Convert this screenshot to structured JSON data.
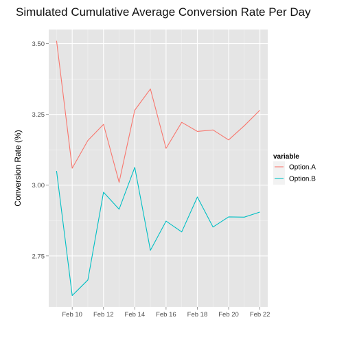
{
  "chart_data": {
    "type": "line",
    "title": "Simulated Cumulative Average Conversion Rate Per Day",
    "xlabel": "",
    "ylabel": "Conversion Rate (%)",
    "x": [
      "2013-02-09",
      "2013-02-10",
      "2013-02-11",
      "2013-02-12",
      "2013-02-13",
      "2013-02-14",
      "2013-02-15",
      "2013-02-16",
      "2013-02-17",
      "2013-02-18",
      "2013-02-19",
      "2013-02-20",
      "2013-02-21",
      "2013-02-22"
    ],
    "xlim": [
      "2013-02-08 12:00",
      "2013-02-22 12:00"
    ],
    "xticks": [
      {
        "date": "2013-02-10",
        "label": "Feb 10"
      },
      {
        "date": "2013-02-12",
        "label": "Feb 12"
      },
      {
        "date": "2013-02-14",
        "label": "Feb 14"
      },
      {
        "date": "2013-02-16",
        "label": "Feb 16"
      },
      {
        "date": "2013-02-18",
        "label": "Feb 18"
      },
      {
        "date": "2013-02-20",
        "label": "Feb 20"
      },
      {
        "date": "2013-02-22",
        "label": "Feb 22"
      }
    ],
    "yticks": [
      {
        "value": 2.75,
        "label": "2.75"
      },
      {
        "value": 3.0,
        "label": "3.00"
      },
      {
        "value": 3.25,
        "label": "3.25"
      },
      {
        "value": 3.5,
        "label": "3.50"
      }
    ],
    "ylim": [
      2.57,
      3.55
    ],
    "grid": true,
    "legend": {
      "title": "variable",
      "position": "right"
    },
    "series": [
      {
        "name": "Option.A",
        "color": "#F8766D",
        "values": [
          3.51,
          3.06,
          3.158,
          3.215,
          3.01,
          3.265,
          3.34,
          3.13,
          3.222,
          3.19,
          3.195,
          3.16,
          3.21,
          3.265
        ]
      },
      {
        "name": "Option.B",
        "color": "#00BFC4",
        "values": [
          3.05,
          2.61,
          2.665,
          2.975,
          2.915,
          3.063,
          2.77,
          2.873,
          2.835,
          2.958,
          2.852,
          2.888,
          2.887,
          2.905
        ]
      }
    ]
  }
}
